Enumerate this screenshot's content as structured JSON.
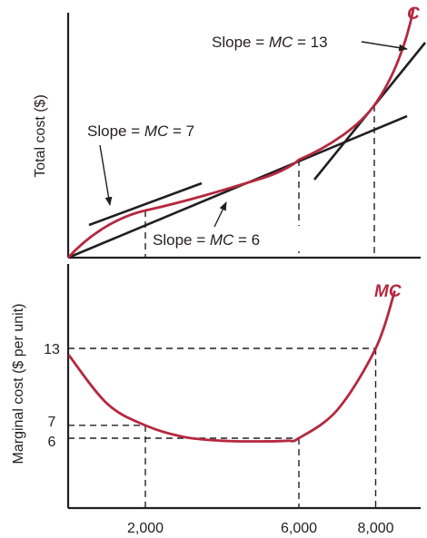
{
  "chart_data": [
    {
      "panel": "top",
      "type": "line",
      "ylabel": "Total cost ($)",
      "curve_label": "C",
      "colors": {
        "curve": "#b5283f",
        "tangents": "#231f20"
      },
      "annotations": [
        {
          "text_prefix": "Slope = ",
          "var": "MC",
          "text_suffix": " = 7",
          "quantity": 2000
        },
        {
          "text_prefix": "Slope = ",
          "var": "MC",
          "text_suffix": " = 6",
          "quantity": 6000
        },
        {
          "text_prefix": "Slope = ",
          "var": "MC",
          "text_suffix": " = 13",
          "quantity": 8000
        }
      ],
      "tangents": [
        {
          "quantity": 2000,
          "slope": 7
        },
        {
          "quantity": 6000,
          "slope": 6
        },
        {
          "quantity": 8000,
          "slope": 13
        }
      ]
    },
    {
      "panel": "bottom",
      "type": "line",
      "ylabel": "Marginal cost ($ per unit)",
      "curve_label": "MC",
      "x_ticks": [
        "2,000",
        "6,000",
        "8,000"
      ],
      "x_tick_values": [
        2000,
        6000,
        8000
      ],
      "y_ticks": [
        "6",
        "7",
        "13"
      ],
      "y_tick_values": [
        6,
        7,
        13
      ],
      "series": [
        {
          "name": "MC",
          "x": [
            0,
            1000,
            2000,
            3000,
            4000,
            5000,
            5700,
            6000,
            7000,
            8000,
            8500
          ],
          "y": [
            12.5,
            8.7,
            7,
            6.1,
            5.8,
            5.75,
            5.8,
            6,
            8.2,
            13,
            17.5
          ]
        }
      ]
    }
  ]
}
